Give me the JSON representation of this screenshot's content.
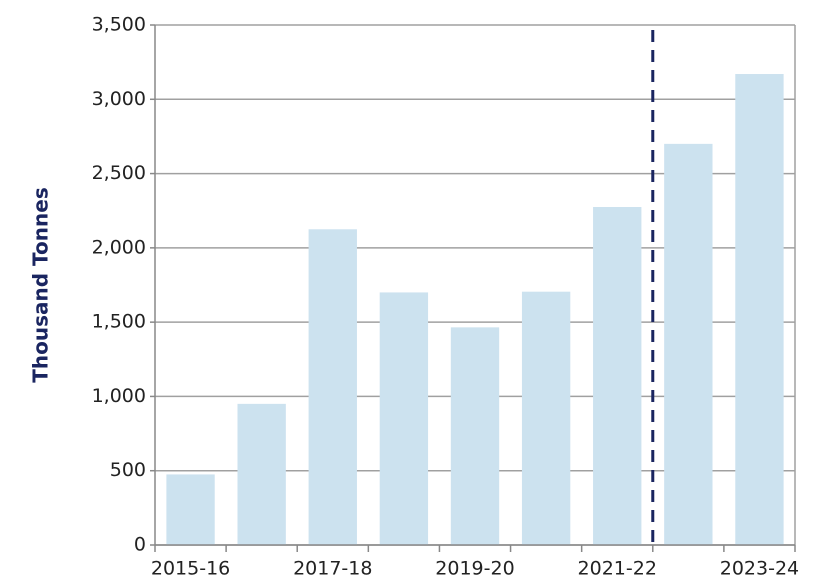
{
  "chart_data": {
    "type": "bar",
    "y_label": "Thousand Tonnes",
    "categories": [
      "2015-16",
      null,
      "2017-18",
      null,
      "2019-20",
      null,
      "2021-22",
      null,
      "2023-24"
    ],
    "values": [
      475,
      950,
      2125,
      1700,
      1465,
      1705,
      2275,
      2700,
      3170
    ],
    "color": "#cce2ef",
    "ylim": [
      0,
      3500
    ],
    "yticks": [
      0,
      500,
      {
        "value": 1000,
        "label": "1,000"
      },
      {
        "value": 1500,
        "label": "1,500"
      },
      {
        "value": 2000,
        "label": "2,000"
      },
      {
        "value": 2500,
        "label": "2,500"
      },
      {
        "value": 3000,
        "label": "3,000"
      },
      {
        "value": 3500,
        "label": "3,500"
      }
    ],
    "grid": true
  }
}
